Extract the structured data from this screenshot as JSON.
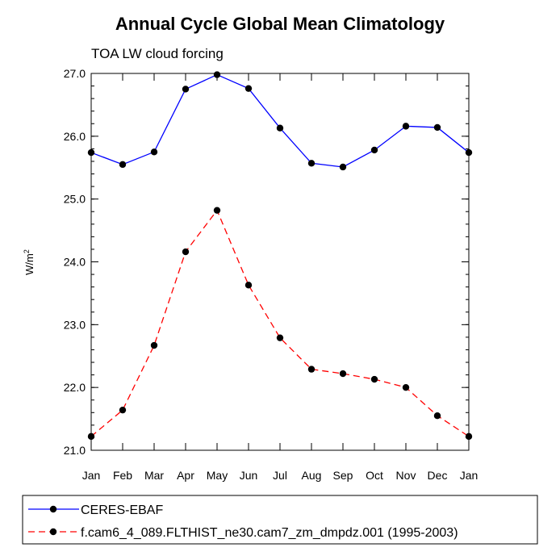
{
  "chart_data": {
    "type": "line",
    "title": "Annual Cycle Global Mean Climatology",
    "subtitle": "TOA LW cloud forcing",
    "ylabel": "W/m",
    "ylabel_sup": "2",
    "xlabel": "",
    "ylim": [
      21.0,
      27.0
    ],
    "yticks": [
      "27.0",
      "26.0",
      "25.0",
      "24.0",
      "23.0",
      "22.0",
      "21.0"
    ],
    "ytick_values": [
      27.0,
      26.0,
      25.0,
      24.0,
      23.0,
      22.0,
      21.0
    ],
    "categories": [
      "Jan",
      "Feb",
      "Mar",
      "Apr",
      "May",
      "Jun",
      "Jul",
      "Aug",
      "Sep",
      "Oct",
      "Nov",
      "Dec",
      "Jan"
    ],
    "series": [
      {
        "name": "CERES-EBAF",
        "color": "#0000ff",
        "dash": "solid",
        "values": [
          25.74,
          25.55,
          25.75,
          26.75,
          26.98,
          26.76,
          26.13,
          25.57,
          25.51,
          25.78,
          26.16,
          26.14,
          25.74
        ]
      },
      {
        "name": "f.cam6_4_089.FLTHIST_ne30.cam7_zm_dmpdz.001 (1995-2003)",
        "color": "#ff0000",
        "dash": "dashed",
        "values": [
          21.22,
          21.64,
          22.67,
          24.16,
          24.82,
          23.63,
          22.79,
          22.29,
          22.22,
          22.13,
          22.0,
          21.55,
          21.22
        ]
      }
    ],
    "legend_position": "bottom"
  }
}
